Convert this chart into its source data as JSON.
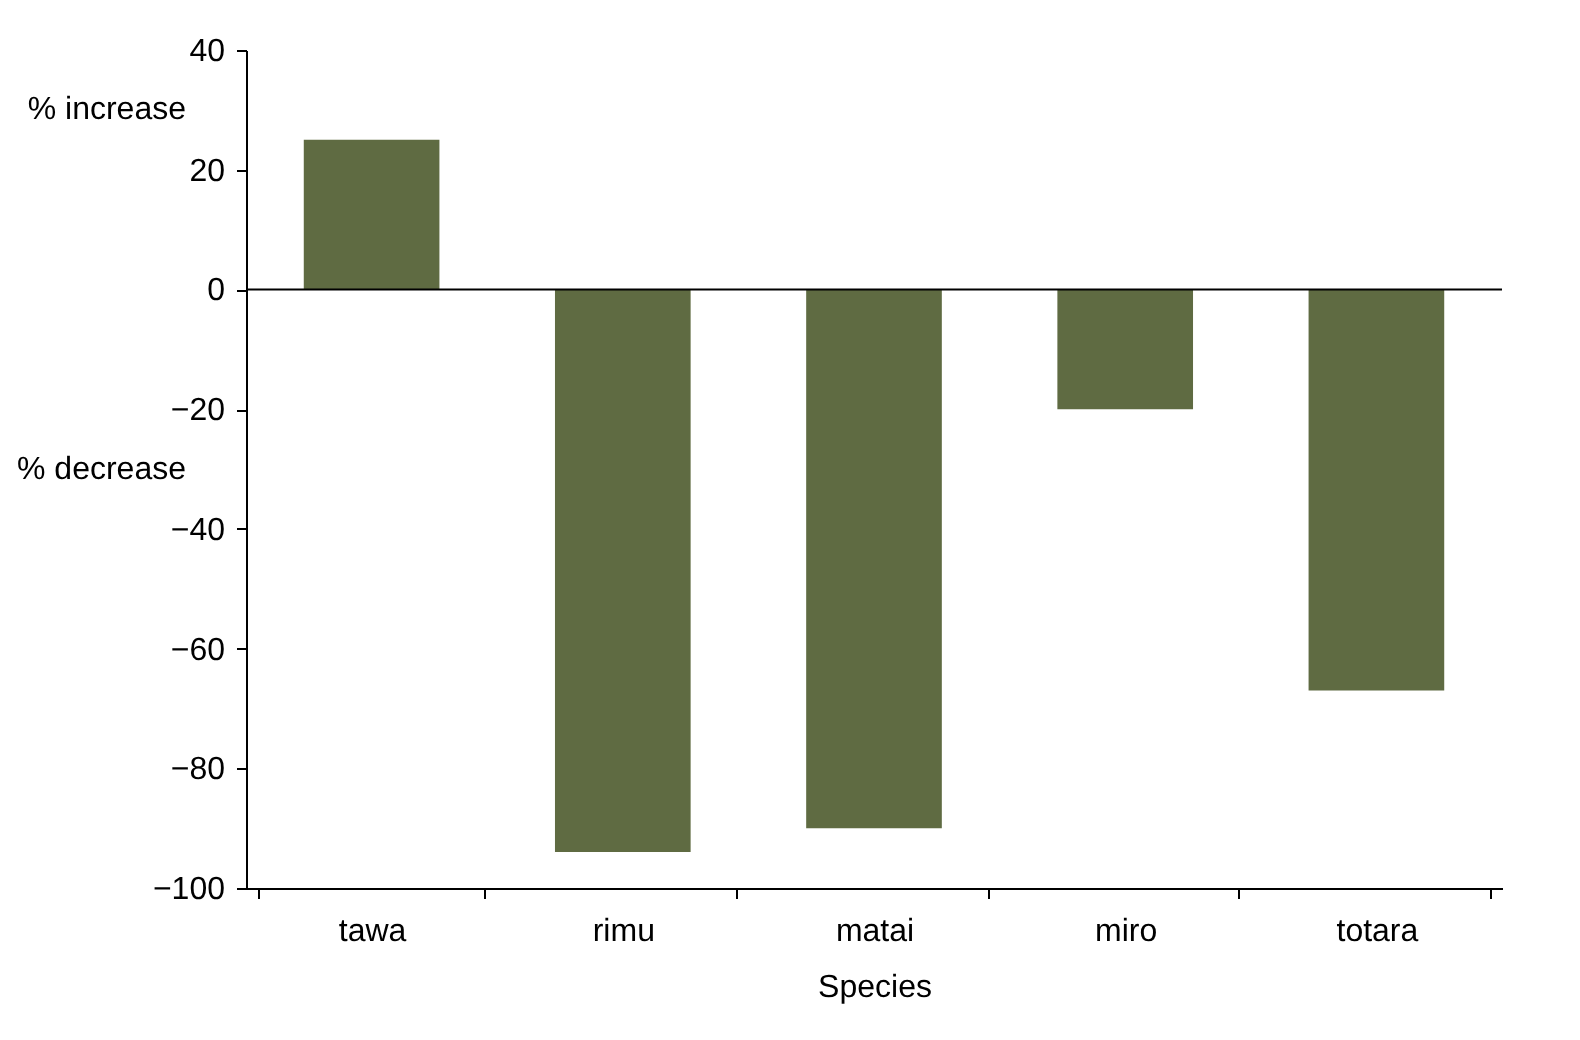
{
  "chart_data": {
    "type": "bar",
    "xlabel": "Species",
    "categories": [
      "tawa",
      "rimu",
      "matai",
      "miro",
      "totara"
    ],
    "values": [
      25,
      -94,
      -90,
      -20,
      -67
    ],
    "color": "#5f6b42",
    "ylim": [
      -100,
      40
    ],
    "yticks": [
      -100,
      -80,
      -60,
      -40,
      -20,
      0,
      20,
      40
    ],
    "grid": false,
    "ref_lines": [
      {
        "axis": "y",
        "value": 0,
        "color": "#000000"
      }
    ],
    "annotations": [
      "% increase",
      "% decrease"
    ]
  }
}
